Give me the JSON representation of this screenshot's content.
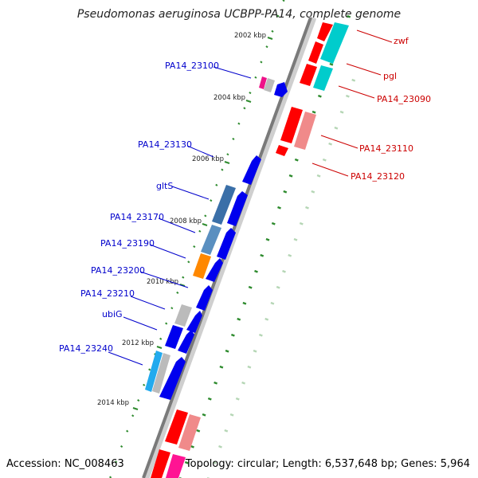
{
  "title": "Pseudomonas aeruginosa UCBPP-PA14, complete genome",
  "accession": "Accession: NC_008463",
  "topology": "Topology: circular; Length: 6,537,648 bp; Genes: 5,964",
  "colors": {
    "forward_label": "#0000cc",
    "reverse_label": "#cc0000",
    "tick": "#2e8b2e",
    "backbone": "#7a7a7a"
  },
  "kbp_labels": [
    "2002 kbp",
    "2004 kbp",
    "2006 kbp",
    "2008 kbp",
    "2010 kbp",
    "2012 kbp",
    "2014 kbp"
  ],
  "forward_genes": [
    "PA14_23100",
    "PA14_23130",
    "gltS",
    "PA14_23170",
    "PA14_23190",
    "PA14_23200",
    "PA14_23210",
    "ubiG",
    "PA14_23240"
  ],
  "reverse_genes": [
    "zwf",
    "pgl",
    "PA14_23090",
    "PA14_23110",
    "PA14_23120"
  ]
}
